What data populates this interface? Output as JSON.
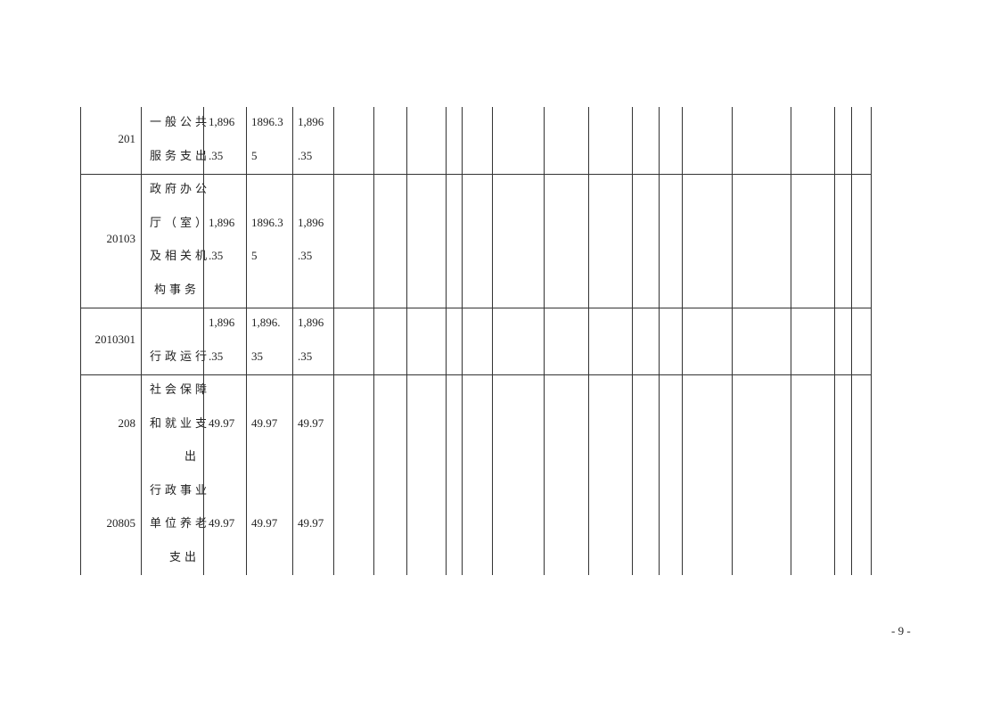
{
  "table": {
    "rows": [
      {
        "code": "201",
        "name": [
          "一般公共",
          "服务支出"
        ],
        "values": [
          [
            [
              "1,896",
              ".35"
            ]
          ],
          [
            [
              "1896.3",
              "5"
            ]
          ],
          [
            [
              "1,896",
              ".35"
            ]
          ]
        ],
        "lines": 2,
        "bottom_border": true
      },
      {
        "code": "20103",
        "name": [
          "政府办公",
          "厅（室）",
          "及相关机",
          "构事务"
        ],
        "values": [
          [
            [
              "1,896",
              ".35"
            ]
          ],
          [
            [
              "1896.3",
              "5"
            ]
          ],
          [
            [
              "1,896",
              ".35"
            ]
          ]
        ],
        "lines": 4,
        "bottom_border": true
      },
      {
        "code": "2010301",
        "name": [
          "",
          "行政运行"
        ],
        "values": [
          [
            [
              "1,896",
              ".35"
            ]
          ],
          [
            [
              "1,896.",
              "35"
            ]
          ],
          [
            [
              "1,896",
              ".35"
            ]
          ]
        ],
        "lines": 2,
        "bottom_border": true
      },
      {
        "code": "208",
        "name": [
          "社会保障",
          "和就业支",
          "出"
        ],
        "values": [
          [
            [
              "49.97"
            ]
          ],
          [
            [
              "49.97"
            ]
          ],
          [
            [
              "49.97"
            ]
          ]
        ],
        "lines": 3,
        "bottom_border": false
      },
      {
        "code": "20805",
        "name": [
          "行政事业",
          "单位养老",
          "支出"
        ],
        "values": [
          [
            [
              "49.97"
            ]
          ],
          [
            [
              "49.97"
            ]
          ],
          [
            [
              "49.97"
            ]
          ]
        ],
        "lines": 3,
        "bottom_border": false
      }
    ]
  },
  "footer": {
    "page_number": "- 9 -"
  }
}
